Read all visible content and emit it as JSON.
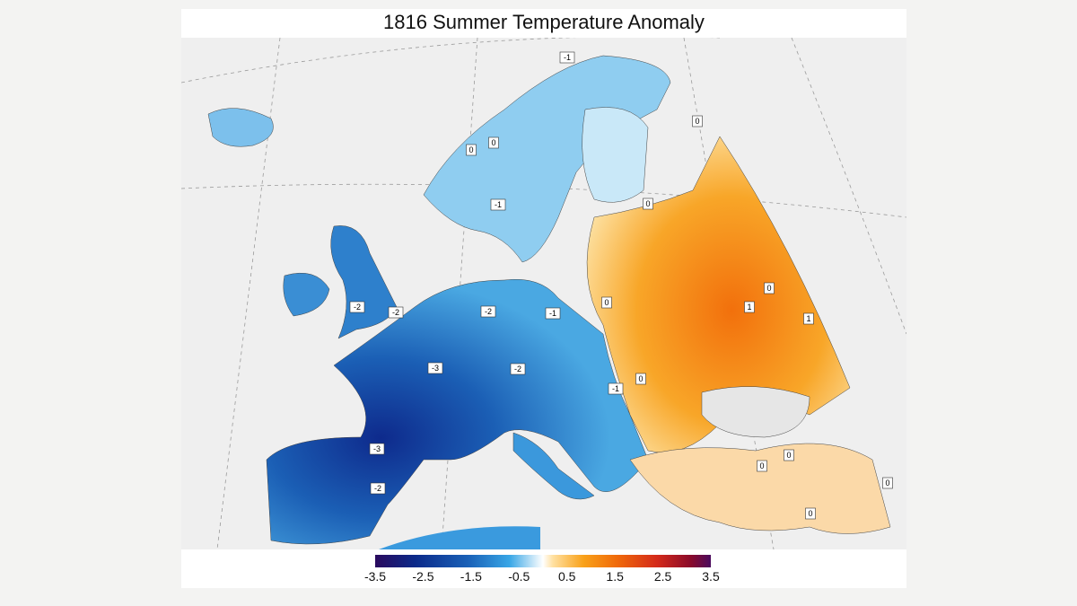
{
  "title": "1816 Summer Temperature Anomaly",
  "map": {
    "type": "anomaly-contour-map",
    "region": "Europe",
    "background_color": "#efefef",
    "contour_labels": [
      "-1",
      "0",
      "0",
      "0",
      "-1",
      "0",
      "0",
      "0",
      "1",
      "1",
      "-2",
      "-2",
      "-2",
      "-1",
      "-3",
      "-2",
      "-1",
      "0",
      "-3",
      "-2",
      "0",
      "0",
      "0",
      "0"
    ]
  },
  "colorbar": {
    "ticks": [
      "-3.5",
      "-2.5",
      "-1.5",
      "-0.5",
      "0.5",
      "1.5",
      "2.5",
      "3.5"
    ],
    "range": [
      -3.5,
      3.5
    ],
    "colors": {
      "min": "#2a0a5e",
      "cold": "#1a62b8",
      "neutral": "#ffffff",
      "warm": "#f9a21a",
      "max": "#4a0a5e"
    }
  }
}
